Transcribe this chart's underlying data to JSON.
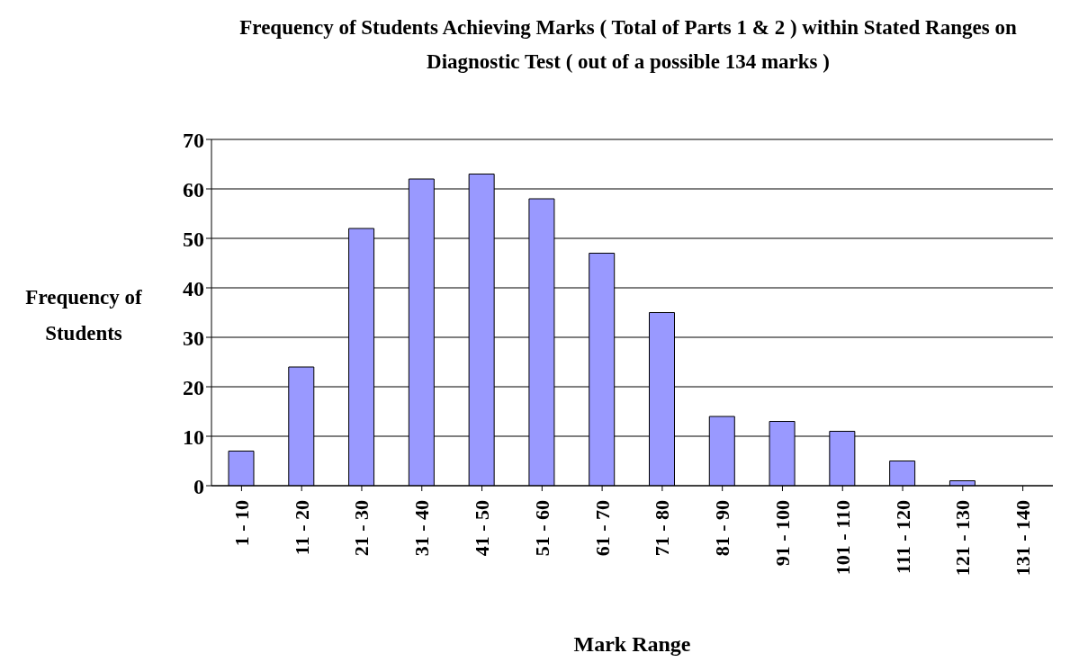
{
  "chart_data": {
    "type": "bar",
    "title": "Frequency of Students Achieving Marks ( Total of Parts 1 & 2 ) within Stated Ranges on Diagnostic Test ( out of a possible 134 marks )",
    "xlabel": "Mark Range",
    "ylabel": "Frequency of Students",
    "categories": [
      "1 - 10",
      "11 - 20",
      "21 - 30",
      "31 - 40",
      "41 - 50",
      "51 - 60",
      "61 - 70",
      "71 - 80",
      "81 - 90",
      "91 - 100",
      "101 - 110",
      "111 - 120",
      "121 - 130",
      "131 - 140"
    ],
    "values": [
      7,
      24,
      52,
      62,
      63,
      58,
      47,
      35,
      14,
      13,
      11,
      5,
      1,
      0
    ],
    "color": "#9999ff",
    "ylim": [
      0,
      70
    ],
    "yticks": [
      0,
      10,
      20,
      30,
      40,
      50,
      60,
      70
    ],
    "grid": "y",
    "legend": false
  }
}
